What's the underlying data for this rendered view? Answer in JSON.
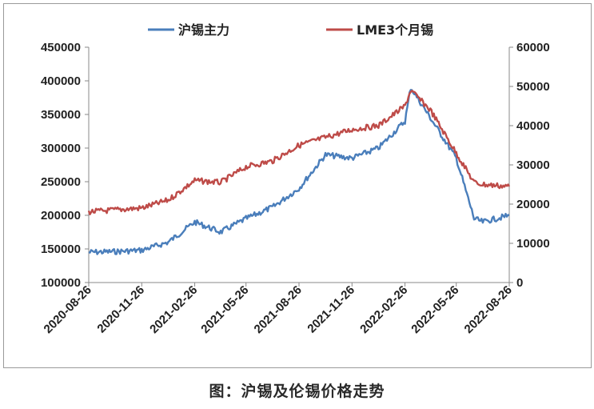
{
  "caption": "图：沪锡及伦锡价格走势",
  "chart_data": {
    "type": "line",
    "title": "",
    "x": [
      "2020-08-26",
      "2020-10-09",
      "2020-11-26",
      "2021-01-11",
      "2021-02-26",
      "2021-04-12",
      "2021-05-26",
      "2021-07-11",
      "2021-08-26",
      "2021-10-11",
      "2021-11-26",
      "2022-01-11",
      "2022-02-26",
      "2022-03-08",
      "2022-04-11",
      "2022-05-26",
      "2022-06-26",
      "2022-07-11",
      "2022-08-26"
    ],
    "x_ticks": [
      "2020-08-26",
      "2020-11-26",
      "2021-02-26",
      "2021-05-26",
      "2021-08-26",
      "2021-11-26",
      "2022-02-26",
      "2022-05-26",
      "2022-08-26"
    ],
    "y_left": {
      "ylim": [
        100000,
        450000
      ],
      "ticks": [
        100000,
        150000,
        200000,
        250000,
        300000,
        350000,
        400000,
        450000
      ]
    },
    "y_right": {
      "ylim": [
        0,
        60000
      ],
      "ticks": [
        0,
        10000,
        20000,
        30000,
        40000,
        50000,
        60000
      ]
    },
    "legend_position": "top",
    "series": [
      {
        "name": "沪锡主力",
        "axis": "left",
        "color": "#4a7ebb",
        "values": [
          145000,
          146000,
          148000,
          160000,
          190000,
          175000,
          195000,
          212000,
          240000,
          290000,
          285000,
          300000,
          340000,
          390000,
          345000,
          285000,
          195000,
          190000,
          200000
        ]
      },
      {
        "name": "LME3个月锡",
        "axis": "right",
        "color": "#be4b48",
        "values": [
          18000,
          18500,
          19000,
          21000,
          26000,
          25500,
          29500,
          31000,
          35000,
          37000,
          39000,
          40000,
          45000,
          49000,
          44000,
          33000,
          25500,
          25000,
          24500
        ]
      }
    ]
  }
}
